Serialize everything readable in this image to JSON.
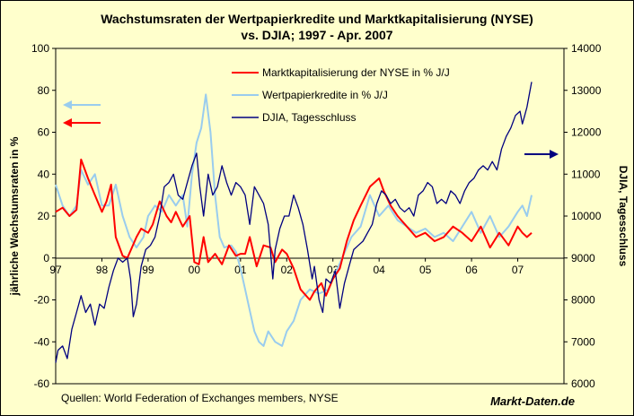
{
  "chart_data": {
    "type": "line",
    "title_line1": "Wachstumsraten der Wertpapierkredite und Marktkapitalisierung (NYSE)",
    "title_line2": "vs. DJIA; 1997 - Apr. 2007",
    "ylabel_left": "jährliche Wachstumsraten in %",
    "ylabel_right": "DJIA, Tagesschluss",
    "ylim_left": [
      -60,
      100
    ],
    "ylim_right": [
      6000,
      14000
    ],
    "xlim": [
      1997,
      2008
    ],
    "left_ticks": [
      "100",
      "80",
      "60",
      "40",
      "20",
      "0",
      "-20",
      "-40",
      "-60"
    ],
    "right_ticks": [
      "14000",
      "13000",
      "12000",
      "11000",
      "10000",
      "9000",
      "8000",
      "7000",
      "6000"
    ],
    "x_ticks": [
      "97",
      "98",
      "99",
      "00",
      "01",
      "02",
      "03",
      "04",
      "05",
      "06",
      "07"
    ],
    "legend": [
      {
        "label": "Marktkapitalisierung der NYSE in % J/J",
        "color": "#ff0000"
      },
      {
        "label": "Wertpapierkredite in % J/J",
        "color": "#99ccee"
      },
      {
        "label": "DJIA, Tagesschluss",
        "color": "#000080"
      }
    ],
    "series": [
      {
        "name": "Marktkapitalisierung der NYSE in % J/J",
        "axis": "left",
        "color": "#ff0000",
        "x": [
          1997.0,
          1997.15,
          1997.3,
          1997.45,
          1997.55,
          1997.7,
          1997.85,
          1998.0,
          1998.1,
          1998.2,
          1998.3,
          1998.45,
          1998.55,
          1998.65,
          1998.75,
          1998.85,
          1999.0,
          1999.1,
          1999.25,
          1999.4,
          1999.5,
          1999.6,
          1999.75,
          1999.9,
          2000.0,
          2000.1,
          2000.2,
          2000.3,
          2000.45,
          2000.6,
          2000.75,
          2000.9,
          2001.0,
          2001.1,
          2001.2,
          2001.35,
          2001.5,
          2001.65,
          2001.75,
          2001.9,
          2002.0,
          2002.15,
          2002.3,
          2002.5,
          2002.6,
          2002.75,
          2002.85,
          2003.0,
          2003.15,
          2003.3,
          2003.45,
          2003.6,
          2003.8,
          2004.0,
          2004.1,
          2004.25,
          2004.4,
          2004.6,
          2004.8,
          2005.0,
          2005.2,
          2005.4,
          2005.6,
          2005.8,
          2006.0,
          2006.2,
          2006.4,
          2006.6,
          2006.8,
          2007.0,
          2007.1,
          2007.2,
          2007.3
        ],
        "values": [
          22,
          24,
          20,
          23,
          47,
          38,
          30,
          22,
          27,
          35,
          10,
          1,
          0,
          5,
          10,
          14,
          12,
          16,
          27,
          20,
          17,
          22,
          15,
          20,
          -2,
          -3,
          10,
          -2,
          2,
          -3,
          6,
          1,
          2,
          2,
          10,
          -4,
          6,
          5,
          -2,
          4,
          2,
          -5,
          -15,
          -20,
          -16,
          -12,
          -18,
          -10,
          -5,
          8,
          18,
          25,
          34,
          38,
          32,
          25,
          20,
          15,
          10,
          12,
          8,
          10,
          15,
          12,
          8,
          15,
          5,
          12,
          6,
          15,
          12,
          10,
          12
        ]
      },
      {
        "name": "Wertpapierkredite in % J/J",
        "axis": "left",
        "color": "#99ccee",
        "x": [
          1997.0,
          1997.15,
          1997.3,
          1997.45,
          1997.55,
          1997.7,
          1997.85,
          1998.0,
          1998.15,
          1998.3,
          1998.45,
          1998.6,
          1998.75,
          1998.9,
          1999.0,
          1999.15,
          1999.3,
          1999.45,
          1999.6,
          1999.75,
          1999.85,
          1999.95,
          2000.05,
          2000.15,
          2000.25,
          2000.35,
          2000.45,
          2000.55,
          2000.65,
          2000.8,
          2000.9,
          2001.0,
          2001.1,
          2001.2,
          2001.3,
          2001.4,
          2001.5,
          2001.6,
          2001.75,
          2001.9,
          2002.0,
          2002.15,
          2002.3,
          2002.5,
          2002.7,
          2002.9,
          2003.0,
          2003.2,
          2003.4,
          2003.6,
          2003.8,
          2004.0,
          2004.2,
          2004.4,
          2004.6,
          2004.8,
          2005.0,
          2005.2,
          2005.4,
          2005.6,
          2005.8,
          2006.0,
          2006.2,
          2006.4,
          2006.6,
          2006.8,
          2007.0,
          2007.1,
          2007.2,
          2007.3
        ],
        "values": [
          35,
          25,
          20,
          25,
          42,
          35,
          40,
          25,
          25,
          35,
          20,
          10,
          5,
          10,
          20,
          25,
          22,
          30,
          25,
          30,
          15,
          40,
          55,
          62,
          78,
          60,
          30,
          10,
          5,
          6,
          3,
          -5,
          -15,
          -25,
          -35,
          -40,
          -42,
          -35,
          -40,
          -42,
          -35,
          -30,
          -20,
          -15,
          -17,
          -15,
          -10,
          0,
          10,
          15,
          30,
          20,
          25,
          18,
          15,
          12,
          14,
          10,
          12,
          8,
          15,
          22,
          12,
          20,
          10,
          15,
          22,
          25,
          20,
          30
        ]
      },
      {
        "name": "DJIA, Tagesschluss",
        "axis": "right",
        "color": "#000080",
        "x": [
          1997.0,
          1997.05,
          1997.15,
          1997.25,
          1997.35,
          1997.45,
          1997.55,
          1997.65,
          1997.75,
          1997.85,
          1997.95,
          1998.05,
          1998.15,
          1998.25,
          1998.35,
          1998.45,
          1998.55,
          1998.62,
          1998.68,
          1998.75,
          1998.85,
          1998.95,
          1999.05,
          1999.15,
          1999.25,
          1999.35,
          1999.45,
          1999.55,
          1999.65,
          1999.75,
          1999.85,
          1999.95,
          2000.05,
          2000.12,
          2000.2,
          2000.3,
          2000.4,
          2000.5,
          2000.6,
          2000.7,
          2000.8,
          2000.9,
          2001.0,
          2001.1,
          2001.2,
          2001.3,
          2001.4,
          2001.5,
          2001.6,
          2001.7,
          2001.75,
          2001.85,
          2001.95,
          2002.05,
          2002.15,
          2002.25,
          2002.35,
          2002.45,
          2002.55,
          2002.6,
          2002.7,
          2002.78,
          2002.85,
          2002.95,
          2003.05,
          2003.15,
          2003.25,
          2003.35,
          2003.45,
          2003.55,
          2003.65,
          2003.75,
          2003.85,
          2003.95,
          2004.05,
          2004.15,
          2004.25,
          2004.35,
          2004.45,
          2004.55,
          2004.65,
          2004.75,
          2004.85,
          2004.95,
          2005.05,
          2005.15,
          2005.25,
          2005.35,
          2005.45,
          2005.55,
          2005.65,
          2005.75,
          2005.85,
          2005.95,
          2006.05,
          2006.15,
          2006.25,
          2006.35,
          2006.45,
          2006.55,
          2006.65,
          2006.75,
          2006.85,
          2006.95,
          2007.05,
          2007.1,
          2007.15,
          2007.2,
          2007.25,
          2007.3
        ],
        "values": [
          6500,
          6800,
          6900,
          6600,
          7300,
          7700,
          8100,
          7700,
          7900,
          7400,
          7900,
          7800,
          8300,
          8700,
          9000,
          8900,
          9000,
          8500,
          7600,
          7900,
          8800,
          9200,
          9300,
          9500,
          10000,
          10700,
          10800,
          11000,
          10500,
          10400,
          10800,
          11200,
          11500,
          10700,
          10000,
          11000,
          10500,
          10700,
          11200,
          10800,
          10500,
          10800,
          10700,
          10500,
          9800,
          10700,
          10500,
          10300,
          9800,
          8500,
          9200,
          9700,
          10000,
          10000,
          10500,
          10200,
          9800,
          9200,
          8500,
          8800,
          8000,
          7700,
          8500,
          8400,
          8700,
          7800,
          8400,
          8800,
          9200,
          9300,
          9400,
          9600,
          9800,
          10300,
          10600,
          10500,
          10300,
          10400,
          10200,
          10100,
          10200,
          10000,
          10500,
          10600,
          10800,
          10700,
          10300,
          10400,
          10300,
          10600,
          10500,
          10300,
          10600,
          10800,
          10900,
          11100,
          11200,
          11100,
          11300,
          11100,
          11600,
          11900,
          12100,
          12400,
          12500,
          12200,
          12400,
          12600,
          12900,
          13200
        ]
      }
    ]
  },
  "footer": {
    "source": "Quellen: World Federation of Exchanges members, NYSE",
    "brand": "Markt-Daten.de"
  }
}
